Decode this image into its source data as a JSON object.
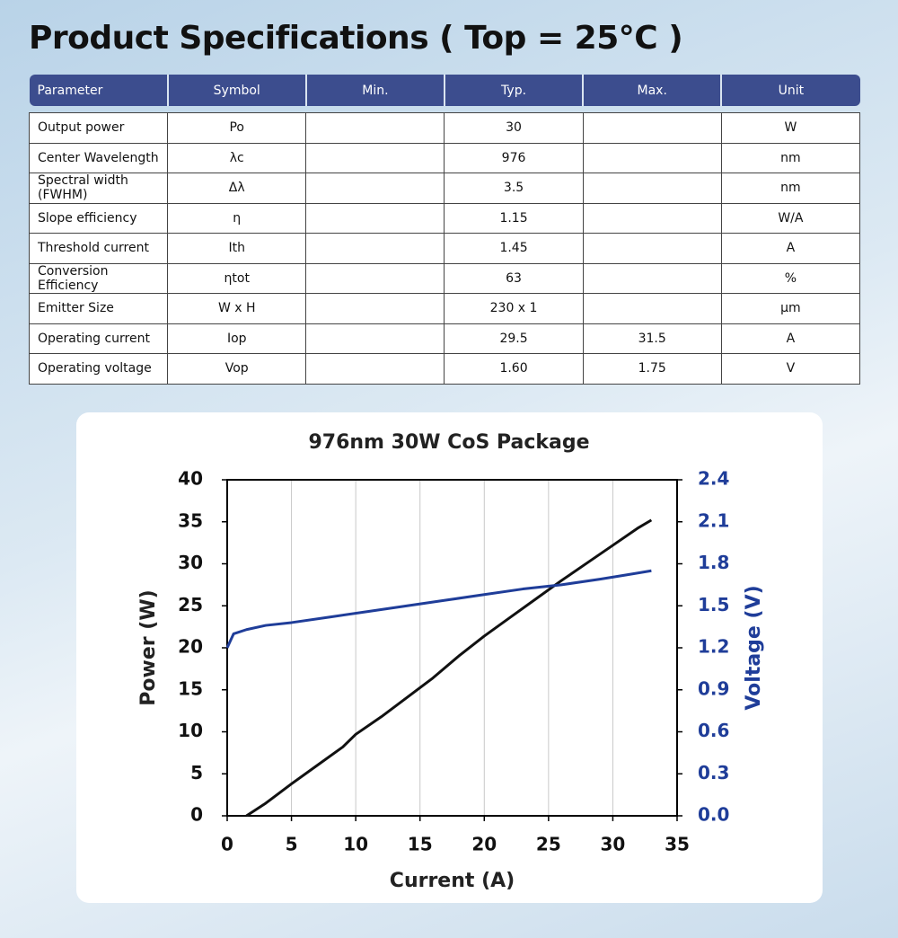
{
  "header": {
    "title": "Product Specifications ( Top = 25°C )"
  },
  "table": {
    "columns": [
      "Parameter",
      "Symbol",
      "Min.",
      "Typ.",
      "Max.",
      "Unit"
    ],
    "rows": [
      [
        "Output power",
        "Po",
        null,
        "30",
        null,
        "W"
      ],
      [
        "Center Wavelength",
        "λc",
        null,
        "976",
        null,
        "nm"
      ],
      [
        "Spectral width (FWHM)",
        "Δλ",
        null,
        "3.5",
        null,
        "nm"
      ],
      [
        "Slope efficiency",
        "η",
        null,
        "1.15",
        null,
        "W/A"
      ],
      [
        "Threshold current",
        "Ith",
        null,
        "1.45",
        null,
        "A"
      ],
      [
        "Conversion Efficiency",
        "ηtot",
        null,
        "63",
        null,
        "%"
      ],
      [
        "Emitter Size",
        "W x H",
        null,
        "230 x 1",
        null,
        "μm"
      ],
      [
        "Operating current",
        "Iop",
        null,
        "29.5",
        "31.5",
        "A"
      ],
      [
        "Operating voltage",
        "Vop",
        null,
        "1.60",
        "1.75",
        "V"
      ]
    ]
  },
  "chart_data": {
    "type": "line",
    "title": "976nm 30W CoS Package",
    "x_label": "Current (A)",
    "y_label": "Power (W)",
    "y2_label": "Voltage (V)",
    "xlim": [
      0,
      35
    ],
    "xticks": [
      0,
      5,
      10,
      15,
      20,
      25,
      30,
      35
    ],
    "ylim": [
      0,
      40
    ],
    "yticks": [
      0,
      5,
      10,
      15,
      20,
      25,
      30,
      35,
      40
    ],
    "y2lim": [
      0,
      2.4
    ],
    "y2ticks": [
      {
        "value": 0,
        "label": "0.0"
      },
      0.3,
      0.6,
      0.9,
      1.2,
      1.5,
      1.8,
      2.1,
      2.4
    ],
    "y2_color": "#1f3d99",
    "series": [
      {
        "color": "#111111",
        "x": [
          1.5,
          3,
          5,
          7,
          9,
          10,
          12,
          14,
          16,
          18,
          20,
          22,
          24,
          26,
          28,
          30,
          32,
          33
        ],
        "values": [
          0,
          1.5,
          3.8,
          6,
          8.2,
          9.7,
          11.8,
          14.1,
          16.4,
          19,
          21.4,
          23.6,
          25.8,
          28,
          30.1,
          32.2,
          34.3,
          35.2
        ]
      },
      {
        "color": "#1f3d99",
        "axis": "y2",
        "x": [
          0,
          0.5,
          1.5,
          3,
          5,
          8,
          11,
          14,
          17,
          20,
          23,
          26,
          29,
          31,
          33
        ],
        "values": [
          1.2,
          1.3,
          1.33,
          1.36,
          1.38,
          1.42,
          1.46,
          1.5,
          1.54,
          1.58,
          1.62,
          1.65,
          1.69,
          1.72,
          1.75
        ]
      }
    ]
  }
}
